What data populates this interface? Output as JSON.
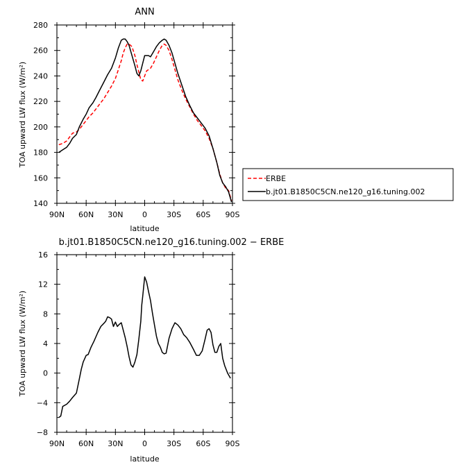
{
  "chart_data": [
    {
      "type": "line",
      "title": "ANN",
      "xlabel": "latitude",
      "ylabel": "TOA upward LW flux (W/m²)",
      "xlim": [
        90,
        -90
      ],
      "ylim": [
        140,
        280
      ],
      "xticks": [
        90,
        60,
        30,
        0,
        -30,
        -60,
        -90
      ],
      "xtick_labels": [
        "90N",
        "60N",
        "30N",
        "0",
        "30S",
        "60S",
        "90S"
      ],
      "yticks": [
        140,
        160,
        180,
        200,
        220,
        240,
        260,
        280
      ],
      "ytick_labels": [
        "140",
        "160",
        "180",
        "200",
        "220",
        "240",
        "260",
        "280"
      ],
      "grid": false,
      "legend_position": "right",
      "series": [
        {
          "name": "ERBE",
          "color": "#ff0000",
          "dash": "dashed",
          "x": [
            88,
            84,
            80,
            77,
            74,
            70,
            67,
            63,
            60,
            57,
            53,
            50,
            46,
            42,
            38,
            34,
            30,
            27,
            24,
            22,
            20,
            18,
            16,
            13,
            10,
            8,
            6,
            4,
            2,
            0,
            -2,
            -4,
            -6,
            -9,
            -12,
            -15,
            -18,
            -20,
            -22,
            -25,
            -28,
            -31,
            -34,
            -38,
            -42,
            -46,
            -50,
            -54,
            -58,
            -62,
            -66,
            -70,
            -74,
            -77,
            -80,
            -83,
            -86,
            -89
          ],
          "y": [
            186,
            187,
            189,
            192,
            195,
            196,
            198,
            202,
            205,
            208,
            211,
            214,
            218,
            222,
            227,
            232,
            238,
            245,
            252,
            258,
            262,
            265,
            265,
            263,
            256,
            249,
            243,
            237,
            236,
            240,
            244,
            245,
            246,
            250,
            255,
            260,
            264,
            265,
            264,
            260,
            253,
            245,
            237,
            229,
            222,
            216,
            210,
            205,
            201,
            197,
            191,
            183,
            172,
            163,
            156,
            152,
            150,
            142
          ]
        },
        {
          "name": "b.jt01.B1850C5CN.ne120_g16.tuning.002",
          "color": "#000000",
          "dash": "solid",
          "x": [
            88,
            84,
            80,
            77,
            74,
            70,
            67,
            63,
            60,
            57,
            53,
            50,
            46,
            42,
            38,
            34,
            30,
            27,
            24,
            22,
            20,
            18,
            16,
            13,
            10,
            8,
            6,
            4,
            2,
            0,
            -2,
            -4,
            -6,
            -9,
            -12,
            -15,
            -18,
            -20,
            -22,
            -25,
            -28,
            -31,
            -34,
            -38,
            -42,
            -46,
            -50,
            -54,
            -58,
            -62,
            -66,
            -70,
            -74,
            -77,
            -80,
            -83,
            -86,
            -89
          ],
          "y": [
            180,
            182,
            184,
            187,
            191,
            194,
            200,
            206,
            210,
            215,
            219,
            223,
            229,
            235,
            241,
            246,
            254,
            262,
            268,
            269,
            269,
            267,
            264,
            256,
            248,
            242,
            240,
            244,
            250,
            256,
            256,
            256,
            255,
            259,
            263,
            266,
            268,
            269,
            268,
            264,
            258,
            250,
            242,
            233,
            224,
            217,
            211,
            207,
            203,
            199,
            193,
            183,
            172,
            162,
            156,
            153,
            149,
            141
          ]
        }
      ]
    },
    {
      "type": "line",
      "title": "b.jt01.B1850C5CN.ne120_g16.tuning.002 − ERBE",
      "xlabel": "latitude",
      "ylabel": "TOA upward LW flux (W/m²)",
      "xlim": [
        90,
        -90
      ],
      "ylim": [
        -8,
        16
      ],
      "xticks": [
        90,
        60,
        30,
        0,
        -30,
        -60,
        -90
      ],
      "xtick_labels": [
        "90N",
        "60N",
        "30N",
        "0",
        "30S",
        "60S",
        "90S"
      ],
      "yticks": [
        -8,
        -4,
        0,
        4,
        8,
        12,
        16
      ],
      "ytick_labels": [
        "−8",
        "−4",
        "0",
        "4",
        "8",
        "12",
        "16"
      ],
      "grid": false,
      "series": [
        {
          "color": "#000000",
          "dash": "solid",
          "x": [
            88,
            86,
            84,
            80,
            77,
            74,
            70,
            67,
            65,
            63,
            60,
            58,
            55,
            52,
            48,
            45,
            42,
            40,
            38,
            36,
            34,
            32,
            30,
            28,
            26,
            24,
            22,
            20,
            18,
            16,
            14,
            12,
            10,
            8,
            6,
            4,
            3,
            2,
            0,
            -2,
            -4,
            -6,
            -8,
            -10,
            -12,
            -14,
            -16,
            -18,
            -20,
            -22,
            -25,
            -28,
            -31,
            -34,
            -37,
            -40,
            -43,
            -46,
            -50,
            -53,
            -56,
            -59,
            -62,
            -64,
            -66,
            -68,
            -70,
            -72,
            -74,
            -76,
            -78,
            -80,
            -82,
            -85,
            -88
          ],
          "y": [
            -6,
            -5.8,
            -4.5,
            -4.2,
            -3.8,
            -3.3,
            -2.7,
            -0.8,
            0.5,
            1.5,
            2.4,
            2.5,
            3.5,
            4.3,
            5.5,
            6.3,
            6.7,
            7.0,
            7.6,
            7.5,
            7.3,
            6.3,
            6.9,
            6.3,
            6.6,
            6.8,
            5.8,
            4.8,
            3.6,
            2.2,
            1.1,
            0.8,
            1.5,
            2.5,
            4.6,
            7.0,
            9.2,
            10.4,
            13.0,
            12.3,
            11.0,
            9.8,
            8.1,
            6.5,
            5.0,
            4.0,
            3.5,
            2.8,
            2.6,
            2.7,
            4.7,
            6.0,
            6.8,
            6.5,
            6.0,
            5.2,
            4.8,
            4.2,
            3.2,
            2.4,
            2.4,
            3.0,
            4.6,
            5.8,
            6.0,
            5.5,
            3.8,
            2.8,
            2.8,
            3.6,
            4.0,
            2.0,
            1.0,
            0.0,
            -0.7
          ]
        }
      ]
    }
  ]
}
